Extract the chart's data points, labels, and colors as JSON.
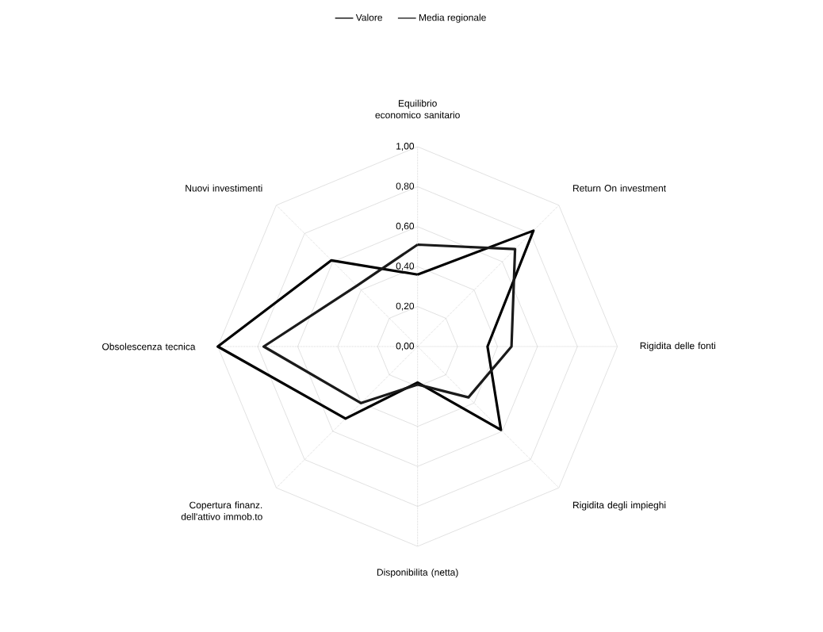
{
  "chart_data": {
    "type": "radar",
    "categories": [
      "Equilibrio economico sanitario",
      "Return On investment",
      "Rigidita delle fonti",
      "Rigidita degli impieghi",
      "Disponibilita (netta)",
      "Copertura finanz. dell'attivo immob.to",
      "Obsolescenza tecnica",
      "Nuovi investimenti"
    ],
    "series": [
      {
        "name": "Valore",
        "color": "#000000",
        "values": [
          0.36,
          0.82,
          0.35,
          0.59,
          0.18,
          0.51,
          1.0,
          0.61
        ]
      },
      {
        "name": "Media regionale",
        "color": "#1a1a1a",
        "values": [
          0.51,
          0.69,
          0.47,
          0.36,
          0.19,
          0.4,
          0.77,
          0.43
        ]
      }
    ],
    "ylim": [
      0,
      1
    ],
    "yticks": [
      {
        "value": 0,
        "label": "0,00"
      },
      {
        "value": 0.2,
        "label": "0,20"
      },
      {
        "value": 0.4,
        "label": "0,40"
      },
      {
        "value": 0.6,
        "label": "0,60"
      },
      {
        "value": 0.8,
        "label": "0,80"
      },
      {
        "value": 1,
        "label": "1,00"
      }
    ],
    "grid": true,
    "legend": "top",
    "marker": "none",
    "line_style": "solid"
  }
}
